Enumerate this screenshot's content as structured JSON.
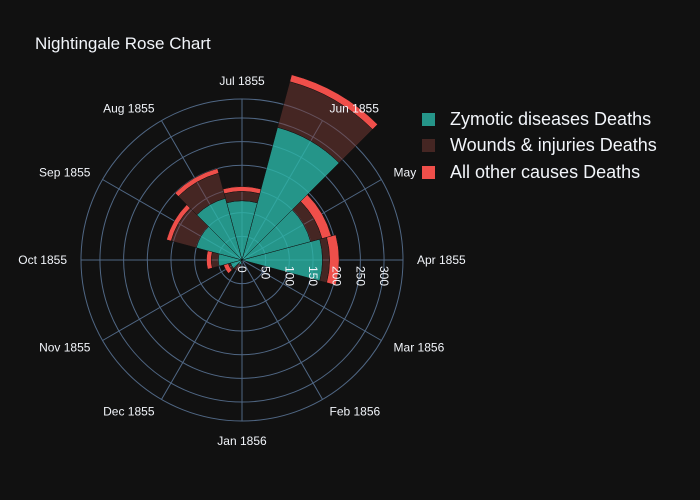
{
  "title": "Nightingale Rose Chart",
  "colors": {
    "background": "#111111",
    "grid": "#506784",
    "text": "#f2f5fa"
  },
  "chart_data": {
    "type": "barpolar",
    "title": "Nightingale Rose Chart",
    "categories": [
      "Apr 1855",
      "May",
      "Jun 1855",
      "Jul 1855",
      "Aug 1855",
      "Sep 1855",
      "Oct 1855",
      "Nov 1855",
      "Dec 1855",
      "Jan 1856",
      "Feb 1856",
      "Mar 1856"
    ],
    "radial_ticks": [
      0,
      50,
      100,
      150,
      200,
      250,
      300
    ],
    "radial_range": [
      0,
      340
    ],
    "direction": "counterclockwise",
    "start_angle_deg": 0,
    "stacked": true,
    "series": [
      {
        "name": "Zymotic diseases Deaths",
        "color": "#2bb7a8",
        "opacity": 0.8,
        "values": [
          170,
          150,
          290,
          125,
          135,
          100,
          50,
          25,
          10,
          0,
          0,
          0
        ]
      },
      {
        "name": "Wounds & injuries Deaths",
        "color": "#7a3b36",
        "opacity": 0.5,
        "values": [
          15,
          25,
          100,
          20,
          55,
          55,
          15,
          5,
          15,
          5,
          0,
          0
        ]
      },
      {
        "name": "All other causes Deaths",
        "color": "#ef4f4a",
        "opacity": 1.0,
        "values": [
          20,
          20,
          15,
          10,
          10,
          10,
          10,
          10,
          0,
          0,
          0,
          0
        ]
      }
    ],
    "legend_position": "top-right",
    "grid": true
  }
}
